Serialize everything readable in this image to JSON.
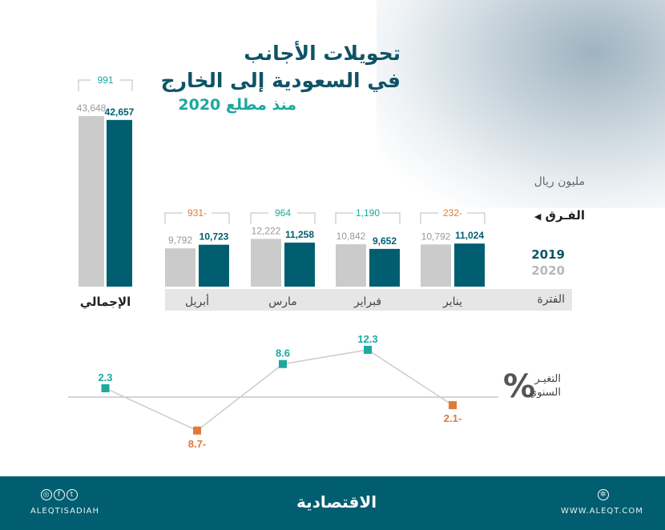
{
  "header": {
    "title_line1": "تحويلات الأجانب",
    "title_line2": "في السعودية إلى الخارج",
    "subtitle": "منذ مطلع 2020"
  },
  "labels": {
    "unit": "مليون ريال",
    "difference": "الفـرق",
    "difference_marker": "◀",
    "period": "الفترة",
    "percent_symbol": "%",
    "annual_change_line1": "التغيـر",
    "annual_change_line2": "السنوي"
  },
  "colors": {
    "y2019": "#005e70",
    "y2020": "#cbcbcb",
    "positive": "#1ba9a0",
    "negative": "#e07a3a",
    "title": "#0f5366"
  },
  "chart_data": [
    {
      "type": "bar",
      "categories": [
        "الإجمالي",
        "أبريل",
        "مارس",
        "فبراير",
        "يناير"
      ],
      "legend": [
        "2019",
        "2020"
      ],
      "series": [
        {
          "name": "2020",
          "values": [
            43648,
            9792,
            12222,
            10842,
            10792
          ],
          "labels": [
            "43,648",
            "9,792",
            "12,222",
            "10,842",
            "10,792"
          ]
        },
        {
          "name": "2019",
          "values": [
            42657,
            10723,
            11258,
            9652,
            11024
          ],
          "labels": [
            "42,657",
            "10,723",
            "11,258",
            "9,652",
            "11,024"
          ]
        }
      ],
      "difference": {
        "values": [
          991,
          -931,
          964,
          1190,
          -232
        ],
        "labels": [
          "991",
          "931-",
          "964",
          "1,190",
          "232-"
        ]
      },
      "unit": "مليون ريال"
    },
    {
      "type": "line",
      "categories": [
        "الإجمالي",
        "أبريل",
        "مارس",
        "فبراير",
        "يناير"
      ],
      "values": [
        2.3,
        -8.7,
        8.6,
        12.3,
        -2.1
      ],
      "labels": [
        "2.3",
        "8.7-",
        "8.6",
        "12.3",
        "2.1-"
      ],
      "unit": "%"
    }
  ],
  "footer": {
    "handle": "ALEQTISADIAH",
    "logo": "الاقتصادية",
    "website": "WWW.ALEQT.COM",
    "icons": [
      "instagram-icon",
      "facebook-icon",
      "twitter-icon",
      "web-icon"
    ]
  }
}
